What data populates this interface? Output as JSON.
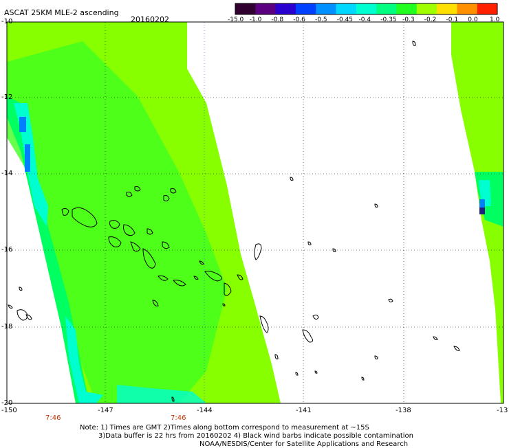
{
  "header": {
    "title": "ASCAT 25KM MLE-2 ascending",
    "date": "20160202"
  },
  "colorbar": {
    "labels": [
      "-15.0",
      "-1.0",
      "-0.8",
      "-0.6",
      "-0.5",
      "-0.45",
      "-0.4",
      "-0.35",
      "-0.3",
      "-0.2",
      "-0.1",
      "0.0",
      "1.0"
    ],
    "colors": [
      "#300030",
      "#5a0080",
      "#2a00d0",
      "#0040ff",
      "#0090ff",
      "#00d8ff",
      "#00ffd0",
      "#00ff80",
      "#20ff20",
      "#a0ff00",
      "#ffe000",
      "#ff9000",
      "#ff2000"
    ]
  },
  "axes": {
    "y_labels": [
      "-10",
      "-12",
      "-14",
      "-16",
      "-18",
      "-20"
    ],
    "x_labels": [
      "-150",
      "-147",
      "-144",
      "-141",
      "-138",
      "-13"
    ]
  },
  "time_labels": [
    "7:46",
    "7:46"
  ],
  "footer": {
    "line1": "Note: 1) Times are GMT 2)Times along bottom correspond to measurement at ~15S",
    "line2": "3)Data buffer is 22 hrs from 20160202 4) Black wind barbs indicate possible contamination",
    "line3": "NOAA/NESDIS/Center for Satellite Applications and Research"
  },
  "map_colors": {
    "main_green": "#88ff00",
    "mid_green": "#40ff20",
    "deep_green": "#00ff60",
    "cyan": "#00ffd0",
    "blue": "#0080ff",
    "navy": "#202080"
  }
}
